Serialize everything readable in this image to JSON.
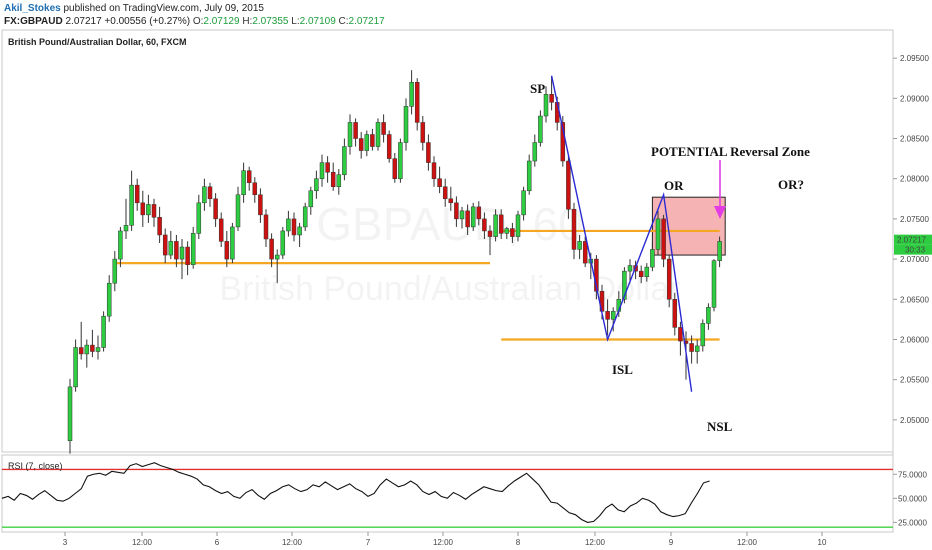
{
  "header": {
    "author": "Akil_Stokes",
    "published_text": "published on TradingView.com, July 09, 2015",
    "symbol": "FX:GBPAUD",
    "last": "2.07217",
    "change": "+0.00556 (+0.27%)",
    "o_label": "O:",
    "o_value": "2.07129",
    "h_label": "H:",
    "h_value": "2.07355",
    "l_label": "L:",
    "l_value": "2.07109",
    "c_label": "C:",
    "c_value": "2.07217"
  },
  "chart_title": "British Pound/Australian Dollar, 60, FXCM",
  "watermark": {
    "symbol": "GBPAUD, 60",
    "name": "British Pound/Australian Dollar"
  },
  "price_axis": {
    "ticks": [
      "2.09500",
      "2.09000",
      "2.08500",
      "2.08000",
      "2.07500",
      "2.07000",
      "2.06500",
      "2.06000",
      "2.05500",
      "2.05000"
    ],
    "last_price_label": "2.07217",
    "countdown_label": "30:33"
  },
  "rsi_panel": {
    "title": "RSI (7, close)",
    "ticks": [
      "75.0000",
      "50.0000",
      "25.0000"
    ],
    "upper_line": 80,
    "lower_line": 20
  },
  "x_axis": {
    "labels": [
      "3",
      "12:00",
      "6",
      "12:00",
      "7",
      "12:00",
      "8",
      "12:00",
      "9",
      "12:00",
      "10"
    ]
  },
  "annotations": {
    "sp": "SP",
    "isl": "ISL",
    "nsl": "NSL",
    "or1": "OR",
    "or2": "OR?",
    "zone": "POTENTIAL Reversal Zone"
  },
  "colors": {
    "bull": "#2ecc40",
    "bear": "#cc1111",
    "level": "#f5a623",
    "pattern": "#2a2ad4",
    "zone_fill": "#f4a6a6",
    "arrow": "#e23ce2",
    "rsi_upper": "#e03030",
    "rsi_lower": "#40d040"
  },
  "chart_data": {
    "type": "candlestick",
    "timeframe": "60",
    "ylim": [
      2.046,
      2.0985
    ],
    "candles_ohlc": [
      [
        2.0474,
        2.0551,
        2.0458,
        2.0541
      ],
      [
        2.0541,
        2.06,
        2.0535,
        2.059
      ],
      [
        2.059,
        2.0622,
        2.0575,
        2.0582
      ],
      [
        2.0582,
        2.06,
        2.0565,
        2.0593
      ],
      [
        2.0593,
        2.0612,
        2.0578,
        2.0585
      ],
      [
        2.0585,
        2.0605,
        2.0575,
        2.059
      ],
      [
        2.059,
        2.0635,
        2.0585,
        2.0629
      ],
      [
        2.0629,
        2.068,
        2.0622,
        2.067
      ],
      [
        2.067,
        2.071,
        2.066,
        2.07
      ],
      [
        2.07,
        2.074,
        2.069,
        2.0735
      ],
      [
        2.0735,
        2.0775,
        2.0725,
        2.0742
      ],
      [
        2.0742,
        2.081,
        2.0735,
        2.0792
      ],
      [
        2.0792,
        2.08,
        2.076,
        2.077
      ],
      [
        2.077,
        2.0785,
        2.074,
        2.0755
      ],
      [
        2.0755,
        2.078,
        2.0745,
        2.0768
      ],
      [
        2.0768,
        2.0775,
        2.074,
        2.0752
      ],
      [
        2.0752,
        2.0765,
        2.072,
        2.073
      ],
      [
        2.073,
        2.0738,
        2.0695,
        2.0705
      ],
      [
        2.0705,
        2.0735,
        2.07,
        2.0722
      ],
      [
        2.0722,
        2.073,
        2.069,
        2.07
      ],
      [
        2.07,
        2.0725,
        2.0675,
        2.0715
      ],
      [
        2.0715,
        2.0722,
        2.068,
        2.0693
      ],
      [
        2.0693,
        2.074,
        2.0688,
        2.0732
      ],
      [
        2.0732,
        2.078,
        2.0725,
        2.077
      ],
      [
        2.077,
        2.08,
        2.076,
        2.079
      ],
      [
        2.079,
        2.0795,
        2.0765,
        2.0775
      ],
      [
        2.0775,
        2.0782,
        2.074,
        2.075
      ],
      [
        2.075,
        2.0758,
        2.0715,
        2.0722
      ],
      [
        2.0722,
        2.0735,
        2.069,
        2.07
      ],
      [
        2.07,
        2.0745,
        2.0695,
        2.074
      ],
      [
        2.074,
        2.079,
        2.0735,
        2.078
      ],
      [
        2.078,
        2.082,
        2.077,
        2.081
      ],
      [
        2.081,
        2.0815,
        2.0785,
        2.0795
      ],
      [
        2.0795,
        2.0802,
        2.077,
        2.078
      ],
      [
        2.078,
        2.0788,
        2.0745,
        2.0755
      ],
      [
        2.0755,
        2.0762,
        2.0715,
        2.0725
      ],
      [
        2.0725,
        2.0732,
        2.069,
        2.07
      ],
      [
        2.07,
        2.0712,
        2.067,
        2.0705
      ],
      [
        2.0705,
        2.074,
        2.07,
        2.0735
      ],
      [
        2.0735,
        2.076,
        2.0728,
        2.075
      ],
      [
        2.075,
        2.0758,
        2.0722,
        2.073
      ],
      [
        2.073,
        2.0745,
        2.0715,
        2.074
      ],
      [
        2.074,
        2.077,
        2.0735,
        2.0765
      ],
      [
        2.0765,
        2.079,
        2.0755,
        2.0785
      ],
      [
        2.0785,
        2.081,
        2.0775,
        2.08
      ],
      [
        2.08,
        2.083,
        2.079,
        2.082
      ],
      [
        2.082,
        2.0828,
        2.0795,
        2.0808
      ],
      [
        2.0808,
        2.082,
        2.0785,
        2.079
      ],
      [
        2.079,
        2.0812,
        2.078,
        2.0805
      ],
      [
        2.0805,
        2.085,
        2.0798,
        2.084
      ],
      [
        2.084,
        2.088,
        2.083,
        2.087
      ],
      [
        2.087,
        2.0875,
        2.084,
        2.085
      ],
      [
        2.085,
        2.0858,
        2.0825,
        2.0835
      ],
      [
        2.0835,
        2.086,
        2.0828,
        2.0855
      ],
      [
        2.0855,
        2.0862,
        2.0835,
        2.084
      ],
      [
        2.084,
        2.0875,
        2.0835,
        2.087
      ],
      [
        2.087,
        2.088,
        2.0845,
        2.0855
      ],
      [
        2.0855,
        2.086,
        2.082,
        2.0825
      ],
      [
        2.0825,
        2.0832,
        2.0795,
        2.08
      ],
      [
        2.08,
        2.085,
        2.0795,
        2.0845
      ],
      [
        2.0845,
        2.09,
        2.0835,
        2.089
      ],
      [
        2.089,
        2.0935,
        2.088,
        2.092
      ],
      [
        2.092,
        2.0925,
        2.086,
        2.087
      ],
      [
        2.087,
        2.0878,
        2.0835,
        2.0845
      ],
      [
        2.0845,
        2.0855,
        2.081,
        2.082
      ],
      [
        2.082,
        2.0828,
        2.079,
        2.08
      ],
      [
        2.08,
        2.0815,
        2.0782,
        2.079
      ],
      [
        2.079,
        2.08,
        2.0765,
        2.0775
      ],
      [
        2.0775,
        2.079,
        2.076,
        2.077
      ],
      [
        2.077,
        2.0778,
        2.074,
        2.075
      ],
      [
        2.075,
        2.0765,
        2.0738,
        2.076
      ],
      [
        2.076,
        2.0768,
        2.073,
        2.074
      ],
      [
        2.074,
        2.077,
        2.0735,
        2.0765
      ],
      [
        2.0765,
        2.0772,
        2.0742,
        2.075
      ],
      [
        2.075,
        2.0758,
        2.0725,
        2.0735
      ],
      [
        2.0735,
        2.0742,
        2.0705,
        2.0728
      ],
      [
        2.0728,
        2.0762,
        2.0722,
        2.0755
      ],
      [
        2.0755,
        2.0762,
        2.0725,
        2.0732
      ],
      [
        2.0732,
        2.074,
        2.0725,
        2.0738
      ],
      [
        2.0738,
        2.0745,
        2.072,
        2.0728
      ],
      [
        2.0728,
        2.076,
        2.0722,
        2.0755
      ],
      [
        2.0755,
        2.079,
        2.0748,
        2.0785
      ],
      [
        2.0785,
        2.083,
        2.078,
        2.0822
      ],
      [
        2.0822,
        2.0855,
        2.0815,
        2.0845
      ],
      [
        2.0845,
        2.0885,
        2.084,
        2.0878
      ],
      [
        2.0878,
        2.0915,
        2.087,
        2.0905
      ],
      [
        2.0905,
        2.0928,
        2.0885,
        2.0895
      ],
      [
        2.0895,
        2.0902,
        2.086,
        2.087
      ],
      [
        2.087,
        2.0878,
        2.0815,
        2.0822
      ],
      [
        2.0822,
        2.0828,
        2.075,
        2.0762
      ],
      [
        2.0762,
        2.077,
        2.07,
        2.0712
      ],
      [
        2.0712,
        2.073,
        2.07,
        2.0722
      ],
      [
        2.0722,
        2.0728,
        2.069,
        2.0695
      ],
      [
        2.0695,
        2.0708,
        2.0675,
        2.07
      ],
      [
        2.07,
        2.0705,
        2.065,
        2.066
      ],
      [
        2.066,
        2.0668,
        2.0625,
        2.0635
      ],
      [
        2.0635,
        2.065,
        2.0605,
        2.0625
      ],
      [
        2.0625,
        2.064,
        2.061,
        2.0635
      ],
      [
        2.0635,
        2.066,
        2.0628,
        2.065
      ],
      [
        2.065,
        2.069,
        2.0645,
        2.0685
      ],
      [
        2.0685,
        2.07,
        2.067,
        2.0692
      ],
      [
        2.0692,
        2.0698,
        2.0675,
        2.0685
      ],
      [
        2.0685,
        2.0692,
        2.067,
        2.0678
      ],
      [
        2.0678,
        2.0695,
        2.0672,
        2.069
      ],
      [
        2.069,
        2.072,
        2.0685,
        2.0712
      ],
      [
        2.0712,
        2.076,
        2.0705,
        2.075
      ],
      [
        2.075,
        2.0755,
        2.069,
        2.07
      ],
      [
        2.07,
        2.0705,
        2.064,
        2.065
      ],
      [
        2.065,
        2.0658,
        2.0605,
        2.0615
      ],
      [
        2.0615,
        2.0622,
        2.058,
        2.0598
      ],
      [
        2.0598,
        2.061,
        2.055,
        2.0595
      ],
      [
        2.0595,
        2.0605,
        2.057,
        2.0585
      ],
      [
        2.0585,
        2.06,
        2.057,
        2.0592
      ],
      [
        2.0592,
        2.0625,
        2.0585,
        2.062
      ],
      [
        2.062,
        2.0645,
        2.0612,
        2.064
      ],
      [
        2.064,
        2.07,
        2.0635,
        2.0698
      ],
      [
        2.0698,
        2.0728,
        2.069,
        2.0722
      ]
    ],
    "levels": [
      {
        "y": 2.0695,
        "x_start": 8,
        "x_end": 75
      },
      {
        "y": 2.0735,
        "x_start": 77,
        "x_end": 116
      },
      {
        "y": 2.06,
        "x_start": 77,
        "x_end": 116
      }
    ],
    "reversal_zone": {
      "y_top": 2.0777,
      "y_bottom": 2.0705,
      "x_start": 104,
      "x_end": 117
    },
    "pattern_points": [
      {
        "label": "SP",
        "x": 86,
        "y": 2.0928
      },
      {
        "label": "ISL",
        "x": 96,
        "y": 2.06
      },
      {
        "label": "OR",
        "x": 106,
        "y": 2.078
      },
      {
        "label": "NSL",
        "x": 111,
        "y": 2.0535
      }
    ],
    "rsi": {
      "ylim": [
        15,
        95
      ],
      "values": [
        50,
        52,
        48,
        55,
        53,
        49,
        54,
        58,
        53,
        48,
        47,
        50,
        55,
        60,
        73,
        75,
        76,
        74,
        78,
        77,
        76,
        84,
        86,
        83,
        85,
        87,
        84,
        82,
        80,
        77,
        75,
        73,
        70,
        64,
        62,
        58,
        55,
        57,
        52,
        50,
        56,
        59,
        53,
        49,
        55,
        58,
        62,
        64,
        60,
        57,
        59,
        64,
        62,
        67,
        63,
        59,
        62,
        65,
        60,
        57,
        52,
        55,
        64,
        70,
        66,
        62,
        64,
        68,
        64,
        57,
        54,
        57,
        52,
        50,
        56,
        53,
        49,
        54,
        58,
        62,
        60,
        58,
        57,
        63,
        68,
        72,
        76,
        70,
        64,
        55,
        46,
        45,
        40,
        35,
        33,
        28,
        25,
        26,
        32,
        40,
        44,
        38,
        36,
        42,
        45,
        50,
        48,
        44,
        36,
        33,
        31,
        32,
        34,
        45,
        55,
        66,
        68
      ]
    }
  }
}
